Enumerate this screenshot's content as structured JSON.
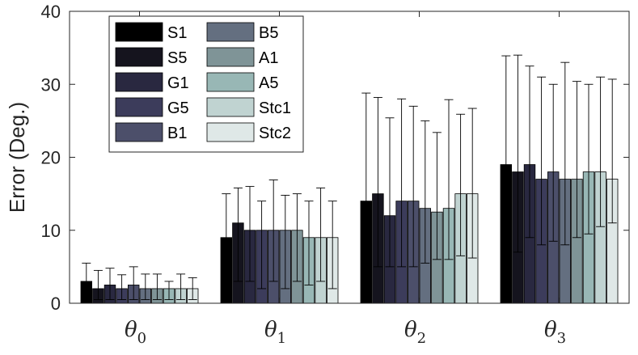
{
  "chart_data": {
    "type": "bar",
    "title": "",
    "xlabel": "",
    "ylabel": "Error (Deg.)",
    "ylim": [
      0,
      40
    ],
    "yticks": [
      0,
      10,
      20,
      30,
      40
    ],
    "grid": false,
    "legend_position": "top-left",
    "categories": [
      {
        "symbol": "θ",
        "sub": "0"
      },
      {
        "symbol": "θ",
        "sub": "1"
      },
      {
        "symbol": "θ",
        "sub": "2"
      },
      {
        "symbol": "θ",
        "sub": "3"
      }
    ],
    "series": [
      {
        "name": "S1",
        "color": "#000000",
        "values": [
          3,
          9,
          14,
          19
        ],
        "err_upper": [
          5.5,
          15,
          28.8,
          33.9
        ],
        "err_lower": [
          1,
          4,
          5,
          7
        ]
      },
      {
        "name": "S5",
        "color": "#15141e",
        "values": [
          2,
          11,
          15,
          18
        ],
        "err_upper": [
          4.5,
          15.8,
          28.2,
          34
        ],
        "err_lower": [
          0.5,
          3,
          5,
          7
        ]
      },
      {
        "name": "G1",
        "color": "#292840",
        "values": [
          2.5,
          10,
          12,
          19
        ],
        "err_upper": [
          4.8,
          16,
          25.4,
          32.5
        ],
        "err_lower": [
          0.5,
          3,
          5,
          9
        ]
      },
      {
        "name": "G5",
        "color": "#3c3c5b",
        "values": [
          2,
          10,
          14,
          17
        ],
        "err_upper": [
          3.9,
          14,
          28,
          31
        ],
        "err_lower": [
          0.5,
          2,
          5,
          8
        ]
      },
      {
        "name": "B1",
        "color": "#4c4f6a",
        "values": [
          2.5,
          10,
          14,
          18
        ],
        "err_upper": [
          5,
          16.9,
          27,
          30
        ],
        "err_lower": [
          0.5,
          3,
          5,
          8.5
        ]
      },
      {
        "name": "B5",
        "color": "#646f80",
        "values": [
          2,
          10,
          13,
          17
        ],
        "err_upper": [
          4,
          14.8,
          25,
          33
        ],
        "err_lower": [
          0.5,
          2,
          5.5,
          8
        ]
      },
      {
        "name": "A1",
        "color": "#7f9497",
        "values": [
          2,
          10,
          12.5,
          17
        ],
        "err_upper": [
          4,
          15,
          23.4,
          30.4
        ],
        "err_lower": [
          0.5,
          3,
          6,
          9
        ]
      },
      {
        "name": "A5",
        "color": "#98b7b5",
        "values": [
          2,
          9,
          13,
          18
        ],
        "err_upper": [
          3,
          14,
          27.9,
          30
        ],
        "err_lower": [
          0.5,
          2.5,
          6,
          9.5
        ]
      },
      {
        "name": "Stc1",
        "color": "#c0d3d1",
        "values": [
          2,
          9,
          15,
          18
        ],
        "err_upper": [
          4,
          15.8,
          25.9,
          31
        ],
        "err_lower": [
          0.5,
          3,
          6.5,
          10.5
        ]
      },
      {
        "name": "Stc2",
        "color": "#dfe8e7",
        "values": [
          2,
          9,
          15,
          17
        ],
        "err_upper": [
          3.5,
          14,
          26.7,
          30.7
        ],
        "err_lower": [
          0.5,
          2,
          6.2,
          11
        ]
      }
    ]
  }
}
